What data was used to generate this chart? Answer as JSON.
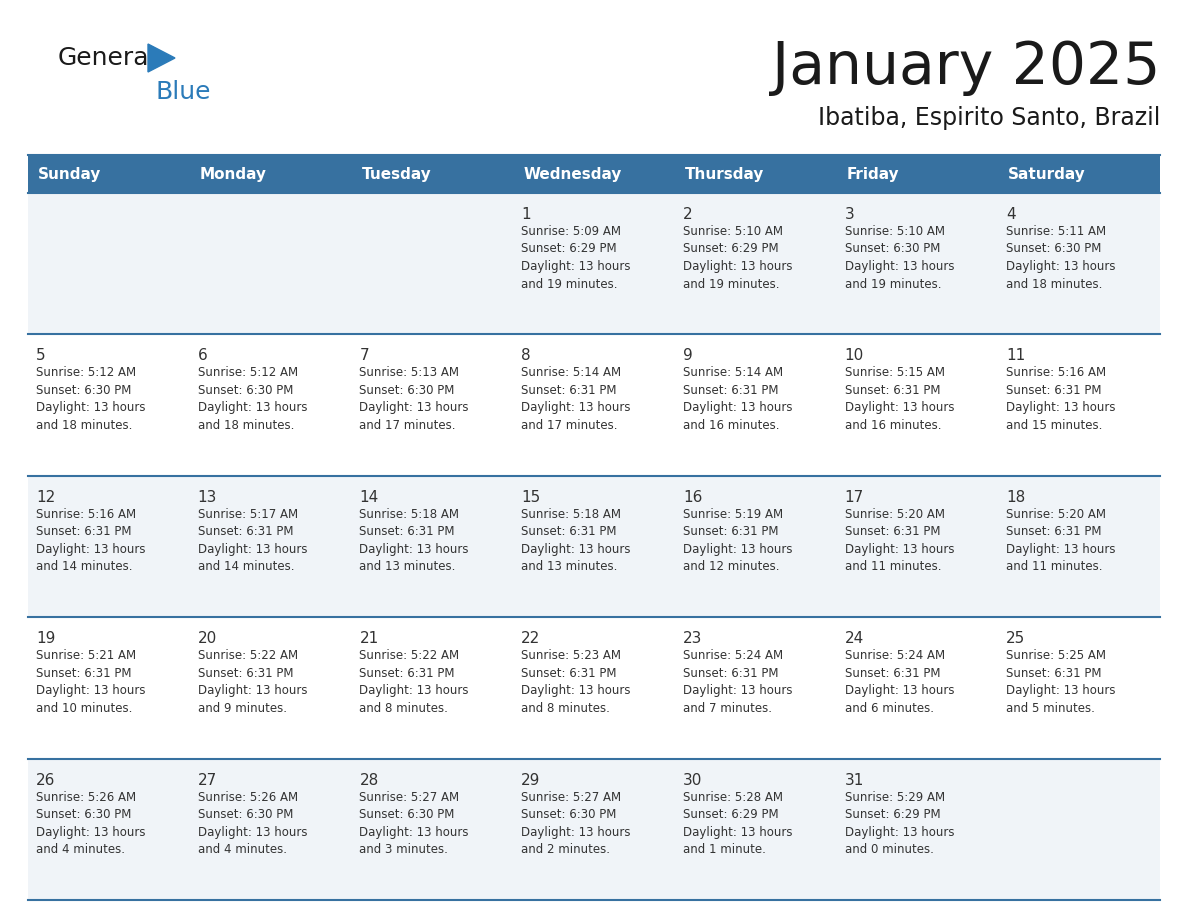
{
  "title": "January 2025",
  "subtitle": "Ibatiba, Espirito Santo, Brazil",
  "days_of_week": [
    "Sunday",
    "Monday",
    "Tuesday",
    "Wednesday",
    "Thursday",
    "Friday",
    "Saturday"
  ],
  "header_bg": "#3771a0",
  "header_text": "#ffffff",
  "row_bg_light": "#f0f4f8",
  "row_bg_white": "#ffffff",
  "border_color": "#3771a0",
  "text_color": "#333333",
  "title_color": "#1a1a1a",
  "logo_black": "#1a1a1a",
  "logo_blue": "#2b7bb9",
  "logo_triangle": "#2b7bb9",
  "calendar_data": [
    [
      null,
      null,
      null,
      {
        "day": 1,
        "sunrise": "5:09 AM",
        "sunset": "6:29 PM",
        "daylight": "13 hours",
        "daylight2": "and 19 minutes."
      },
      {
        "day": 2,
        "sunrise": "5:10 AM",
        "sunset": "6:29 PM",
        "daylight": "13 hours",
        "daylight2": "and 19 minutes."
      },
      {
        "day": 3,
        "sunrise": "5:10 AM",
        "sunset": "6:30 PM",
        "daylight": "13 hours",
        "daylight2": "and 19 minutes."
      },
      {
        "day": 4,
        "sunrise": "5:11 AM",
        "sunset": "6:30 PM",
        "daylight": "13 hours",
        "daylight2": "and 18 minutes."
      }
    ],
    [
      {
        "day": 5,
        "sunrise": "5:12 AM",
        "sunset": "6:30 PM",
        "daylight": "13 hours",
        "daylight2": "and 18 minutes."
      },
      {
        "day": 6,
        "sunrise": "5:12 AM",
        "sunset": "6:30 PM",
        "daylight": "13 hours",
        "daylight2": "and 18 minutes."
      },
      {
        "day": 7,
        "sunrise": "5:13 AM",
        "sunset": "6:30 PM",
        "daylight": "13 hours",
        "daylight2": "and 17 minutes."
      },
      {
        "day": 8,
        "sunrise": "5:14 AM",
        "sunset": "6:31 PM",
        "daylight": "13 hours",
        "daylight2": "and 17 minutes."
      },
      {
        "day": 9,
        "sunrise": "5:14 AM",
        "sunset": "6:31 PM",
        "daylight": "13 hours",
        "daylight2": "and 16 minutes."
      },
      {
        "day": 10,
        "sunrise": "5:15 AM",
        "sunset": "6:31 PM",
        "daylight": "13 hours",
        "daylight2": "and 16 minutes."
      },
      {
        "day": 11,
        "sunrise": "5:16 AM",
        "sunset": "6:31 PM",
        "daylight": "13 hours",
        "daylight2": "and 15 minutes."
      }
    ],
    [
      {
        "day": 12,
        "sunrise": "5:16 AM",
        "sunset": "6:31 PM",
        "daylight": "13 hours",
        "daylight2": "and 14 minutes."
      },
      {
        "day": 13,
        "sunrise": "5:17 AM",
        "sunset": "6:31 PM",
        "daylight": "13 hours",
        "daylight2": "and 14 minutes."
      },
      {
        "day": 14,
        "sunrise": "5:18 AM",
        "sunset": "6:31 PM",
        "daylight": "13 hours",
        "daylight2": "and 13 minutes."
      },
      {
        "day": 15,
        "sunrise": "5:18 AM",
        "sunset": "6:31 PM",
        "daylight": "13 hours",
        "daylight2": "and 13 minutes."
      },
      {
        "day": 16,
        "sunrise": "5:19 AM",
        "sunset": "6:31 PM",
        "daylight": "13 hours",
        "daylight2": "and 12 minutes."
      },
      {
        "day": 17,
        "sunrise": "5:20 AM",
        "sunset": "6:31 PM",
        "daylight": "13 hours",
        "daylight2": "and 11 minutes."
      },
      {
        "day": 18,
        "sunrise": "5:20 AM",
        "sunset": "6:31 PM",
        "daylight": "13 hours",
        "daylight2": "and 11 minutes."
      }
    ],
    [
      {
        "day": 19,
        "sunrise": "5:21 AM",
        "sunset": "6:31 PM",
        "daylight": "13 hours",
        "daylight2": "and 10 minutes."
      },
      {
        "day": 20,
        "sunrise": "5:22 AM",
        "sunset": "6:31 PM",
        "daylight": "13 hours",
        "daylight2": "and 9 minutes."
      },
      {
        "day": 21,
        "sunrise": "5:22 AM",
        "sunset": "6:31 PM",
        "daylight": "13 hours",
        "daylight2": "and 8 minutes."
      },
      {
        "day": 22,
        "sunrise": "5:23 AM",
        "sunset": "6:31 PM",
        "daylight": "13 hours",
        "daylight2": "and 8 minutes."
      },
      {
        "day": 23,
        "sunrise": "5:24 AM",
        "sunset": "6:31 PM",
        "daylight": "13 hours",
        "daylight2": "and 7 minutes."
      },
      {
        "day": 24,
        "sunrise": "5:24 AM",
        "sunset": "6:31 PM",
        "daylight": "13 hours",
        "daylight2": "and 6 minutes."
      },
      {
        "day": 25,
        "sunrise": "5:25 AM",
        "sunset": "6:31 PM",
        "daylight": "13 hours",
        "daylight2": "and 5 minutes."
      }
    ],
    [
      {
        "day": 26,
        "sunrise": "5:26 AM",
        "sunset": "6:30 PM",
        "daylight": "13 hours",
        "daylight2": "and 4 minutes."
      },
      {
        "day": 27,
        "sunrise": "5:26 AM",
        "sunset": "6:30 PM",
        "daylight": "13 hours",
        "daylight2": "and 4 minutes."
      },
      {
        "day": 28,
        "sunrise": "5:27 AM",
        "sunset": "6:30 PM",
        "daylight": "13 hours",
        "daylight2": "and 3 minutes."
      },
      {
        "day": 29,
        "sunrise": "5:27 AM",
        "sunset": "6:30 PM",
        "daylight": "13 hours",
        "daylight2": "and 2 minutes."
      },
      {
        "day": 30,
        "sunrise": "5:28 AM",
        "sunset": "6:29 PM",
        "daylight": "13 hours",
        "daylight2": "and 1 minute."
      },
      {
        "day": 31,
        "sunrise": "5:29 AM",
        "sunset": "6:29 PM",
        "daylight": "13 hours",
        "daylight2": "and 0 minutes."
      },
      null
    ]
  ]
}
